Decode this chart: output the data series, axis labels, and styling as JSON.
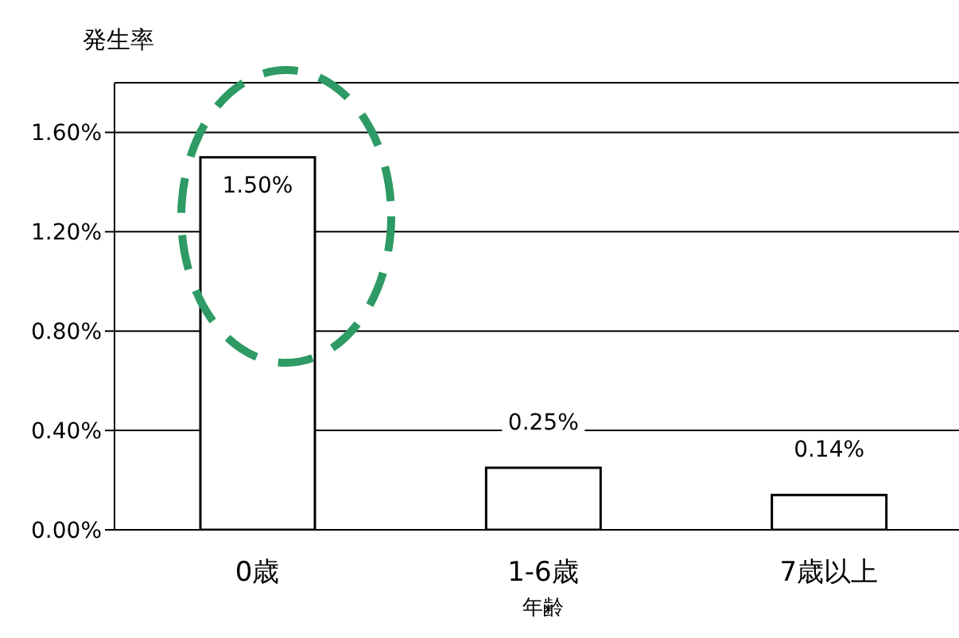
{
  "chart_data": {
    "type": "bar",
    "ylabel": "発生率",
    "xlabel": "年齢",
    "categories": [
      "0歳",
      "1-6歳",
      "7歳以上"
    ],
    "values": [
      1.5,
      0.25,
      0.14
    ],
    "value_labels": [
      "1.50%",
      "0.25%",
      "0.14%"
    ],
    "color": "#ffffff",
    "ylim": [
      0,
      1.8
    ],
    "yticks": [
      {
        "value": 0,
        "label": "0.00%"
      },
      {
        "value": 0.4,
        "label": "0.40%"
      },
      {
        "value": 0.8,
        "label": "0.80%"
      },
      {
        "value": 1.2,
        "label": "1.20%"
      },
      {
        "value": 1.6,
        "label": "1.60%"
      }
    ],
    "grid": "y"
  }
}
